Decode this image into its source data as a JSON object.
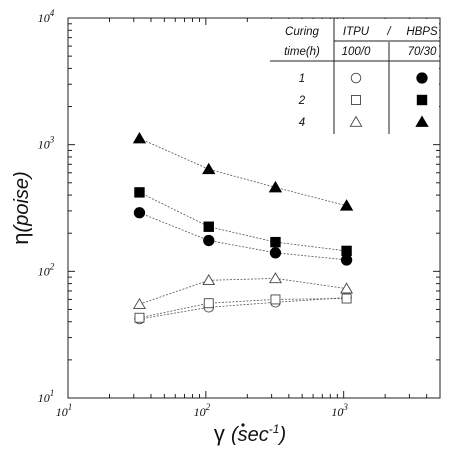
{
  "chart_data": {
    "type": "scatter",
    "xscale": "log",
    "yscale": "log",
    "xlim": [
      10,
      5000
    ],
    "ylim": [
      10,
      10000
    ],
    "grid": false,
    "legend_position": "top-right",
    "ylabel": "η(poise)",
    "xlabel": "γ (sec⁻¹)",
    "ylabel_parts": {
      "main": "η",
      "unit": "(poise)"
    },
    "xlabel_parts": {
      "main": "γ",
      "unit_open": "(sec",
      "unit_exp": "-1",
      "unit_close": ")"
    },
    "x_ticks": [
      {
        "value": 10,
        "base": "10",
        "exp": "1"
      },
      {
        "value": 100,
        "base": "10",
        "exp": "2"
      },
      {
        "value": 1000,
        "base": "10",
        "exp": "3"
      }
    ],
    "y_ticks": [
      {
        "value": 10,
        "base": "10",
        "exp": "1"
      },
      {
        "value": 100,
        "base": "10",
        "exp": "2"
      },
      {
        "value": 1000,
        "base": "10",
        "exp": "3"
      },
      {
        "value": 10000,
        "base": "10",
        "exp": "4"
      }
    ],
    "legend": {
      "header_row1": [
        "Curing",
        "ITPU",
        "/",
        "HBPS"
      ],
      "header_row2": [
        "time(h)",
        "100/0",
        "70/30"
      ],
      "rows": [
        "1",
        "2",
        "4"
      ]
    },
    "series": [
      {
        "name": "1 h, 100/0",
        "marker": "circle-open",
        "x": [
          33,
          105,
          320,
          1050
        ],
        "y": [
          42,
          52,
          57,
          62
        ]
      },
      {
        "name": "2 h, 100/0",
        "marker": "square-open",
        "x": [
          33,
          105,
          320,
          1050
        ],
        "y": [
          43,
          56,
          60,
          61
        ]
      },
      {
        "name": "4 h, 100/0",
        "marker": "triangle-open",
        "x": [
          33,
          105,
          320,
          1050
        ],
        "y": [
          55,
          85,
          88,
          73
        ]
      },
      {
        "name": "1 h, 70/30",
        "marker": "circle-filled",
        "x": [
          33,
          105,
          320,
          1050
        ],
        "y": [
          290,
          175,
          140,
          123
        ]
      },
      {
        "name": "2 h, 70/30",
        "marker": "square-filled",
        "x": [
          33,
          105,
          320,
          1050
        ],
        "y": [
          420,
          225,
          170,
          145
        ]
      },
      {
        "name": "4 h, 70/30",
        "marker": "triangle-filled",
        "x": [
          33,
          105,
          320,
          1050
        ],
        "y": [
          1120,
          640,
          460,
          330
        ]
      }
    ]
  }
}
